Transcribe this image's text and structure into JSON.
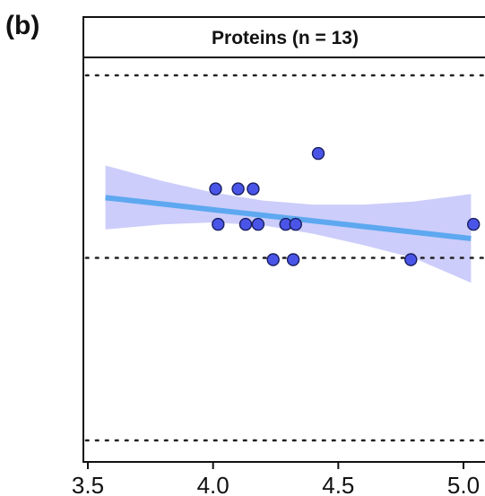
{
  "figure": {
    "panel_label": "(b)"
  },
  "chart_data": {
    "type": "scatter",
    "title": "Proteins (n = 13)",
    "xlabel": "",
    "ylabel": "",
    "xlim": [
      3.5,
      5.05
    ],
    "ylim": [
      0,
      1
    ],
    "x_ticks": [
      3.5,
      4.0,
      4.5,
      5.0
    ],
    "x_tick_labels": [
      "3.5",
      "4.0",
      "4.5",
      "5.0"
    ],
    "reference_lines_y": [
      0.5,
      1.0
    ],
    "grid": false,
    "points": [
      {
        "x": 4.01,
        "y": 0.689
      },
      {
        "x": 4.1,
        "y": 0.689
      },
      {
        "x": 4.16,
        "y": 0.689
      },
      {
        "x": 4.42,
        "y": 0.786
      },
      {
        "x": 4.02,
        "y": 0.592
      },
      {
        "x": 4.13,
        "y": 0.592
      },
      {
        "x": 4.18,
        "y": 0.592
      },
      {
        "x": 4.29,
        "y": 0.592
      },
      {
        "x": 4.33,
        "y": 0.592
      },
      {
        "x": 5.04,
        "y": 0.592
      },
      {
        "x": 4.24,
        "y": 0.495
      },
      {
        "x": 4.32,
        "y": 0.495
      },
      {
        "x": 4.79,
        "y": 0.495
      }
    ],
    "trend_line": {
      "x": [
        3.57,
        5.03
      ],
      "y": [
        0.665,
        0.553
      ]
    },
    "confidence_band": {
      "x": [
        3.57,
        3.8,
        4.0,
        4.2,
        4.4,
        4.6,
        4.8,
        5.03
      ],
      "upper": [
        0.753,
        0.71,
        0.679,
        0.657,
        0.646,
        0.646,
        0.654,
        0.675
      ],
      "lower": [
        0.578,
        0.592,
        0.597,
        0.589,
        0.566,
        0.535,
        0.5,
        0.432
      ]
    },
    "colors": {
      "point_fill": "#4a55e8",
      "point_stroke": "#1a1f60",
      "trend_line": "#5da8f0",
      "band": "#c6c8fa",
      "reference_line": "#222222",
      "frame": "#111111"
    }
  }
}
